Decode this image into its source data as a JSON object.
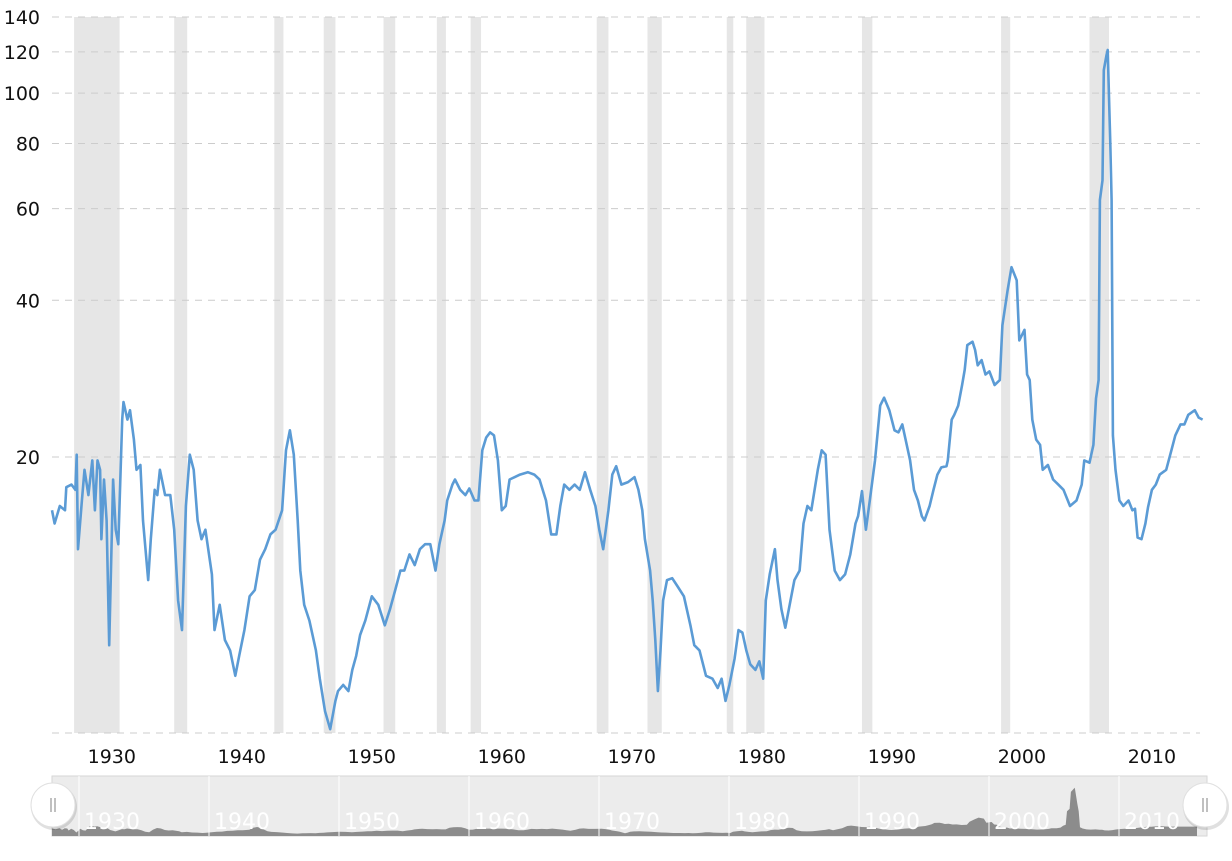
{
  "chart_data": {
    "type": "line",
    "title": "",
    "xlabel": "",
    "ylabel": "",
    "y_scale": "log",
    "ylim": [
      5.9,
      140
    ],
    "xlim": [
      1925.4,
      2013.7
    ],
    "grid": "horizontal dashed",
    "legend": "none",
    "y_ticks": [
      20,
      40,
      60,
      80,
      100,
      120,
      140
    ],
    "y_tick_labels": [
      "20",
      "40",
      "60",
      "80",
      "100",
      "120",
      "140"
    ],
    "x_ticks": [
      1930,
      1940,
      1950,
      1960,
      1970,
      1980,
      1990,
      2000,
      2010
    ],
    "x_tick_labels": [
      "1930",
      "1940",
      "1950",
      "1960",
      "1970",
      "1980",
      "1990",
      "2000",
      "2010"
    ],
    "colors": {
      "series": "#5b9bd5",
      "recession_band": "#e6e6e6",
      "navigator_area": "#8c8c8c",
      "navigator_bg": "#ececec"
    },
    "shaded_periods": [
      [
        1927.1,
        1930.6
      ],
      [
        1934.8,
        1935.8
      ],
      [
        1942.5,
        1943.2
      ],
      [
        1946.3,
        1947.2
      ],
      [
        1950.9,
        1951.8
      ],
      [
        1955.0,
        1955.7
      ],
      [
        1957.6,
        1958.4
      ],
      [
        1967.3,
        1968.2
      ],
      [
        1971.2,
        1972.3
      ],
      [
        1977.3,
        1977.8
      ],
      [
        1978.8,
        1980.2
      ],
      [
        1987.7,
        1988.5
      ],
      [
        1998.4,
        1999.1
      ],
      [
        2005.2,
        2006.7
      ]
    ],
    "series": [
      {
        "x": [
          1925.4,
          1925.6,
          1926.0,
          1926.4,
          1926.5,
          1926.9,
          1927.2,
          1927.3,
          1927.4,
          1927.7,
          1927.9,
          1928.2,
          1928.5,
          1928.7,
          1928.9,
          1929.1,
          1929.2,
          1929.4,
          1929.6,
          1929.8,
          1930.1,
          1930.3,
          1930.5,
          1930.8,
          1930.9,
          1931.2,
          1931.4,
          1931.7,
          1931.9,
          1932.2,
          1932.4,
          1932.8,
          1933.0,
          1933.3,
          1933.5,
          1933.7,
          1934.1,
          1934.5,
          1934.8,
          1935.1,
          1935.4,
          1935.7,
          1936.0,
          1936.3,
          1936.6,
          1936.9,
          1937.2,
          1937.7,
          1937.9,
          1938.3,
          1938.7,
          1939.1,
          1939.5,
          1939.8,
          1940.2,
          1940.6,
          1941.0,
          1941.4,
          1941.8,
          1942.2,
          1942.6,
          1943.1,
          1943.4,
          1943.7,
          1944.0,
          1944.3,
          1944.5,
          1944.8,
          1945.2,
          1945.7,
          1946.0,
          1946.4,
          1946.8,
          1947.2,
          1947.4,
          1947.8,
          1948.2,
          1948.5,
          1948.8,
          1949.1,
          1949.5,
          1950.0,
          1950.5,
          1951.0,
          1951.4,
          1951.8,
          1952.2,
          1952.5,
          1952.9,
          1953.3,
          1953.7,
          1954.1,
          1954.5,
          1954.9,
          1955.2,
          1955.6,
          1955.8,
          1956.2,
          1956.4,
          1956.8,
          1957.2,
          1957.5,
          1957.9,
          1958.2,
          1958.5,
          1958.8,
          1959.1,
          1959.4,
          1959.7,
          1960.0,
          1960.3,
          1960.6,
          1961.0,
          1961.4,
          1962.0,
          1962.5,
          1962.9,
          1963.4,
          1963.8,
          1964.2,
          1964.5,
          1964.8,
          1965.2,
          1965.6,
          1966.0,
          1966.4,
          1966.8,
          1967.2,
          1967.5,
          1967.8,
          1968.2,
          1968.5,
          1968.8,
          1969.2,
          1969.7,
          1970.2,
          1970.5,
          1970.8,
          1971.0,
          1971.4,
          1971.6,
          1971.8,
          1972.0,
          1972.2,
          1972.4,
          1972.7,
          1973.1,
          1973.5,
          1974.0,
          1974.5,
          1974.8,
          1975.2,
          1975.7,
          1976.2,
          1976.6,
          1976.9,
          1977.2,
          1977.5,
          1977.9,
          1978.2,
          1978.5,
          1978.8,
          1979.1,
          1979.5,
          1979.8,
          1980.1,
          1980.3,
          1980.6,
          1981.0,
          1981.2,
          1981.5,
          1981.8,
          1982.2,
          1982.5,
          1982.9,
          1983.2,
          1983.5,
          1983.8,
          1984.3,
          1984.6,
          1984.9,
          1985.2,
          1985.6,
          1986.0,
          1986.4,
          1986.8,
          1987.2,
          1987.4,
          1987.7,
          1988.0,
          1988.3,
          1988.7,
          1989.1,
          1989.4,
          1989.8,
          1990.2,
          1990.5,
          1990.8,
          1991.4,
          1991.7,
          1992.0,
          1992.3,
          1992.5,
          1992.9,
          1993.2,
          1993.5,
          1993.8,
          1994.2,
          1994.3,
          1994.6,
          1994.8,
          1995.1,
          1995.4,
          1995.6,
          1995.8,
          1996.2,
          1996.4,
          1996.6,
          1996.9,
          1997.2,
          1997.5,
          1997.9,
          1998.3,
          1998.5,
          1998.9,
          1999.2,
          1999.6,
          1999.8,
          2000.2,
          2000.4,
          2000.6,
          2000.8,
          2001.1,
          2001.4,
          2001.6,
          2002.0,
          2002.4,
          2002.8,
          2003.2,
          2003.7,
          2004.2,
          2004.6,
          2004.8,
          2005.2,
          2005.5,
          2005.7,
          2005.9,
          2006.0,
          2006.2,
          2006.3,
          2006.5,
          2006.6,
          2006.8,
          2006.9,
          2007.0,
          2007.2,
          2007.5,
          2007.8,
          2008.2,
          2008.5,
          2008.7,
          2008.9,
          2009.2,
          2009.5,
          2009.7,
          2010.0,
          2010.3,
          2010.6,
          2011.1,
          2011.5,
          2011.8,
          2012.2,
          2012.5,
          2012.8,
          2013.3,
          2013.6,
          2013.9
        ],
        "y": [
          15.8,
          14.9,
          16.1,
          15.8,
          17.5,
          17.7,
          17.3,
          20.2,
          13.3,
          16.5,
          18.9,
          16.9,
          19.7,
          15.8,
          19.7,
          18.9,
          13.9,
          18.1,
          15.1,
          8.7,
          18.1,
          14.5,
          13.6,
          23.6,
          25.5,
          23.6,
          24.6,
          21.6,
          18.9,
          19.3,
          15.1,
          11.6,
          13.9,
          17.3,
          16.9,
          18.9,
          16.9,
          16.9,
          14.5,
          10.6,
          9.3,
          16.1,
          20.2,
          18.9,
          15.1,
          13.9,
          14.5,
          11.9,
          9.3,
          10.4,
          8.9,
          8.5,
          7.6,
          8.3,
          9.3,
          10.8,
          11.1,
          12.7,
          13.3,
          14.2,
          14.5,
          15.8,
          20.6,
          22.5,
          20.2,
          15.1,
          12.1,
          10.4,
          9.7,
          8.5,
          7.5,
          6.5,
          6.0,
          6.8,
          7.1,
          7.3,
          7.1,
          7.8,
          8.3,
          9.1,
          9.7,
          10.8,
          10.4,
          9.5,
          10.2,
          11.1,
          12.1,
          12.1,
          13.0,
          12.4,
          13.3,
          13.6,
          13.6,
          12.1,
          13.6,
          15.1,
          16.5,
          17.7,
          18.1,
          17.3,
          16.9,
          17.4,
          16.5,
          16.5,
          20.6,
          21.8,
          22.3,
          22.0,
          19.7,
          15.8,
          16.1,
          18.1,
          18.3,
          18.5,
          18.7,
          18.5,
          18.1,
          16.5,
          14.2,
          14.2,
          16.1,
          17.7,
          17.3,
          17.7,
          17.3,
          18.7,
          17.3,
          16.1,
          14.5,
          13.3,
          15.8,
          18.5,
          19.2,
          17.7,
          17.9,
          18.3,
          17.3,
          15.8,
          13.9,
          12.1,
          10.6,
          8.9,
          7.1,
          8.5,
          10.6,
          11.6,
          11.7,
          11.3,
          10.8,
          9.5,
          8.7,
          8.5,
          7.6,
          7.5,
          7.2,
          7.5,
          6.8,
          7.3,
          8.2,
          9.3,
          9.2,
          8.5,
          8.0,
          7.8,
          8.1,
          7.5,
          10.6,
          11.9,
          13.3,
          11.6,
          10.2,
          9.4,
          10.6,
          11.6,
          12.1,
          14.9,
          16.1,
          15.8,
          18.9,
          20.6,
          20.2,
          14.5,
          12.1,
          11.6,
          11.9,
          13.0,
          14.9,
          15.4,
          17.2,
          14.5,
          16.5,
          19.7,
          25.1,
          26.0,
          24.6,
          22.5,
          22.3,
          23.1,
          19.7,
          17.3,
          16.5,
          15.4,
          15.1,
          16.1,
          17.3,
          18.5,
          19.1,
          19.2,
          19.7,
          23.6,
          24.1,
          25.1,
          27.5,
          29.4,
          32.8,
          33.3,
          32.1,
          30.0,
          30.7,
          28.8,
          29.2,
          27.5,
          28.1,
          35.8,
          41.8,
          46.3,
          43.7,
          33.5,
          35.1,
          28.8,
          28.1,
          23.6,
          21.6,
          21.1,
          18.9,
          19.3,
          18.1,
          17.7,
          17.3,
          16.1,
          16.5,
          17.7,
          19.7,
          19.5,
          21.1,
          25.9,
          28.1,
          62.3,
          68.0,
          110.7,
          118.0,
          121.0,
          80.0,
          62.3,
          22.0,
          18.9,
          16.5,
          16.1,
          16.5,
          15.8,
          15.9,
          14.0,
          13.9,
          14.9,
          16.0,
          17.3,
          17.7,
          18.5,
          18.9,
          20.6,
          22.0,
          23.1,
          23.1,
          24.1,
          24.6,
          23.8,
          23.6
        ]
      }
    ],
    "navigator": {
      "x_tick_labels": [
        "1930",
        "1940",
        "1950",
        "1960",
        "1970",
        "1980",
        "1990",
        "2000",
        "2010"
      ],
      "handles": [
        "left-handle",
        "right-handle"
      ]
    }
  }
}
